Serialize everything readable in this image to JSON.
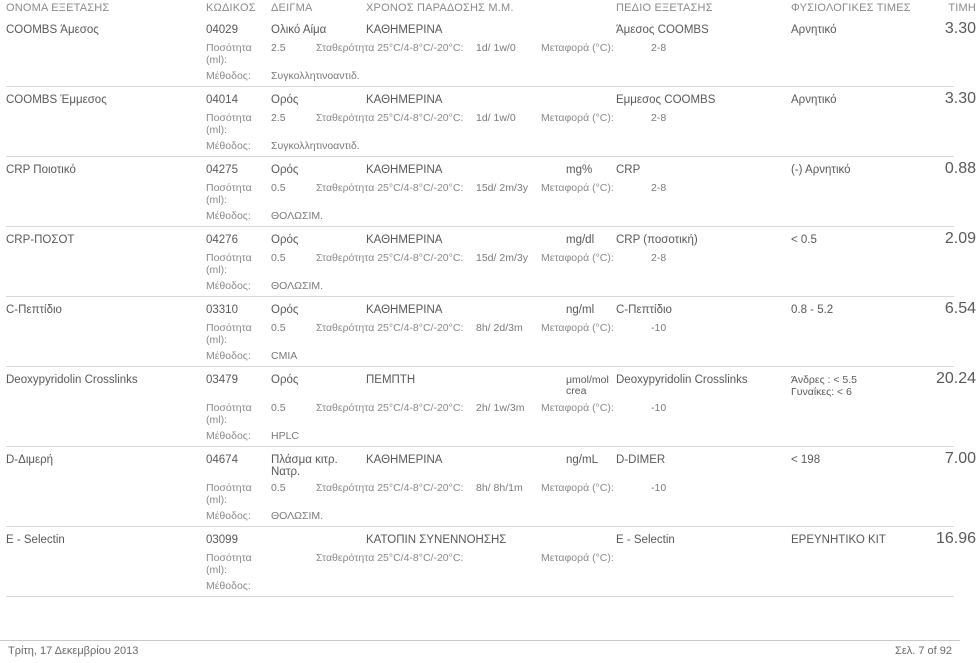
{
  "headers": {
    "name": "ΟΝΟΜΑ ΕΞΕΤΑΣΗΣ",
    "code": "ΚΩΔΙΚΟΣ",
    "sample": "ΔΕΙΓΜΑ",
    "delivery": "ΧΡΟΝΟΣ ΠΑΡΑΔΟΣΗΣ Μ.Μ.",
    "field": "ΠΕΔΙΟ ΕΞΕΤΑΣΗΣ",
    "ranges": "ΦΥΣΙΟΛΟΓΙΚΕΣ ΤΙΜΕΣ",
    "price": "ΤΙΜΗ"
  },
  "labels": {
    "qty": "Ποσότητα (ml):",
    "stab": "Σταθερότητα 25°C/4-8°C/-20°C:",
    "trans": "Μεταφορά (°C):",
    "method": "Μέθοδος:"
  },
  "rows": [
    {
      "name": "COOMBS Άμεσος",
      "code": "04029",
      "sample": "Ολικό Αίμα",
      "delivery": "ΚΑΘΗΜΕΡΙΝΑ",
      "unit": "",
      "field": "Άμεσος COOMBS",
      "ranges": "Αρνητικό",
      "price": "3.30",
      "qty": "2.5",
      "stab": "1d/ 1w/0",
      "trans": "2-8",
      "method": "Συγκολλητινοαντιδ."
    },
    {
      "name": "COOMBS Έμμεσος",
      "code": "04014",
      "sample": "Ορός",
      "delivery": "ΚΑΘΗΜΕΡΙΝΑ",
      "unit": "",
      "field": "Εμμεσος COOMBS",
      "ranges": "Αρνητικό",
      "price": "3.30",
      "qty": "2.5",
      "stab": "1d/ 1w/0",
      "trans": "2-8",
      "method": "Συγκολλητινοαντιδ."
    },
    {
      "name": "CRP Ποιοτικό",
      "code": "04275",
      "sample": "Ορός",
      "delivery": "ΚΑΘΗΜΕΡΙΝΑ",
      "unit": "mg%",
      "field": "CRP",
      "ranges": "(-) Αρνητικό",
      "price": "0.88",
      "qty": "0.5",
      "stab": "15d/ 2m/3y",
      "trans": "2-8",
      "method": "ΘΟΛΩΣΙΜ."
    },
    {
      "name": "CRP-ΠΟΣΟΤ",
      "code": "04276",
      "sample": "Ορός",
      "delivery": "ΚΑΘΗΜΕΡΙΝΑ",
      "unit": "mg/dl",
      "field": "CRP (ποσοτική)",
      "ranges": "< 0.5",
      "price": "2.09",
      "qty": "0.5",
      "stab": "15d/ 2m/3y",
      "trans": "2-8",
      "method": "ΘΟΛΩΣΙΜ."
    },
    {
      "name": "C-Πεπτίδιο",
      "code": "03310",
      "sample": "Ορός",
      "delivery": "ΚΑΘΗΜΕΡΙΝΑ",
      "unit": "ng/ml",
      "field": "C-Πεπτίδιο",
      "ranges": "0.8 - 5.2",
      "price": "6.54",
      "qty": "0.5",
      "stab": "8h/ 2d/3m",
      "trans": "-10",
      "method": "CMIA"
    },
    {
      "name": "Deoxypyridolin Crosslinks",
      "code": "03479",
      "sample": "Ορός",
      "delivery": "ΠΕΜΠΤΗ",
      "unit": "μmol/mol",
      "unit2": "crea",
      "field": "Deoxypyridolin Crosslinks",
      "ranges": "Άνδρες : < 5.5",
      "ranges2": "Γυναίκες: < 6",
      "price": "20.24",
      "qty": "0.5",
      "stab": "2h/ 1w/3m",
      "trans": "-10",
      "method": "HPLC"
    },
    {
      "name": "D-Διμερή",
      "code": "04674",
      "sample": "Πλάσμα κιτρ. Νατρ.",
      "delivery": "ΚΑΘΗΜΕΡΙΝΑ",
      "unit": "ng/mL",
      "field": "D-DIMER",
      "ranges": "< 198",
      "price": "7.00",
      "qty": "0.5",
      "stab": "8h/ 8h/1m",
      "trans": "-10",
      "method": "ΘΟΛΩΣΙΜ."
    },
    {
      "name": "E - Selectin",
      "code": "03099",
      "sample": "",
      "delivery": "ΚΑΤΟΠΙΝ ΣΥΝΕΝΝΟΗΣΗΣ",
      "unit": "",
      "field": "E - Selectin",
      "ranges": "ΕΡΕΥΝΗΤΙΚΟ ΚΙΤ",
      "price": "16.96",
      "qty": "",
      "stab": "",
      "trans": "",
      "method": ""
    }
  ],
  "footer": {
    "date": "Τρίτη, 17 Δεκεμβρίου 2013",
    "page": "Σελ. 7 of 92"
  }
}
